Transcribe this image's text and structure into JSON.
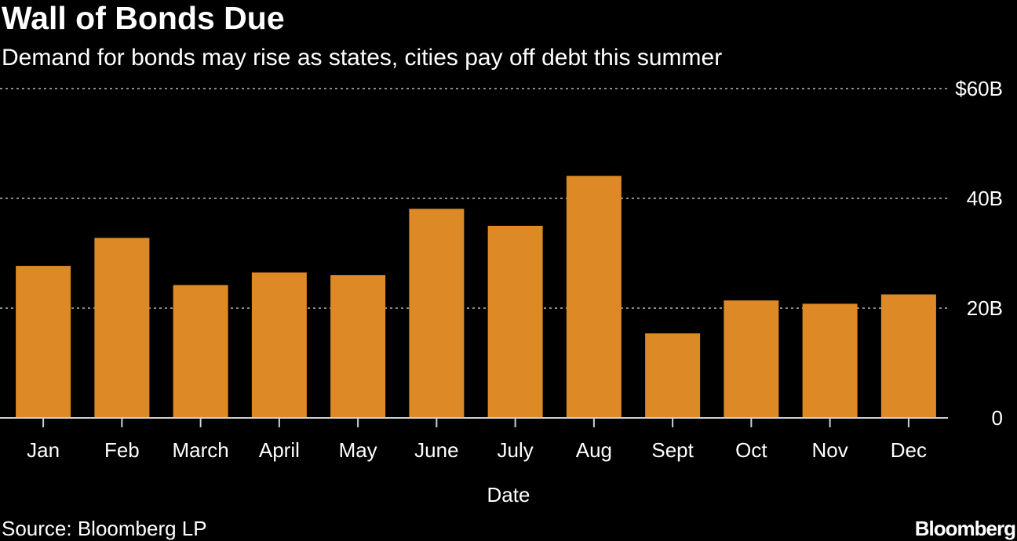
{
  "title": "Wall of Bonds Due",
  "subtitle": "Demand for bonds may rise as states, cities pay off debt this summer",
  "source": "Source: Bloomberg LP",
  "logo": "Bloomberg",
  "colors": {
    "background": "#000000",
    "bar": "#dd8a26",
    "text": "#ffffff",
    "grid": "#8a8a8a"
  },
  "chart_data": {
    "type": "bar",
    "categories": [
      "Jan",
      "Feb",
      "March",
      "April",
      "May",
      "June",
      "July",
      "Aug",
      "Sept",
      "Oct",
      "Nov",
      "Dec"
    ],
    "values": [
      27.7,
      32.8,
      24.2,
      26.5,
      26.0,
      38.1,
      35.0,
      44.1,
      15.4,
      21.4,
      20.8,
      22.5
    ],
    "title": "Wall of Bonds Due",
    "subtitle": "Demand for bonds may rise as states, cities pay off debt this summer",
    "xlabel": "Date",
    "ylabel": "",
    "ylim": [
      0,
      60
    ],
    "yticks": [
      {
        "value": 0,
        "label": "0"
      },
      {
        "value": 20,
        "label": "20B"
      },
      {
        "value": 40,
        "label": "40B"
      },
      {
        "value": 60,
        "label": "$60B"
      }
    ],
    "grid": true,
    "y_axis_position": "right"
  }
}
